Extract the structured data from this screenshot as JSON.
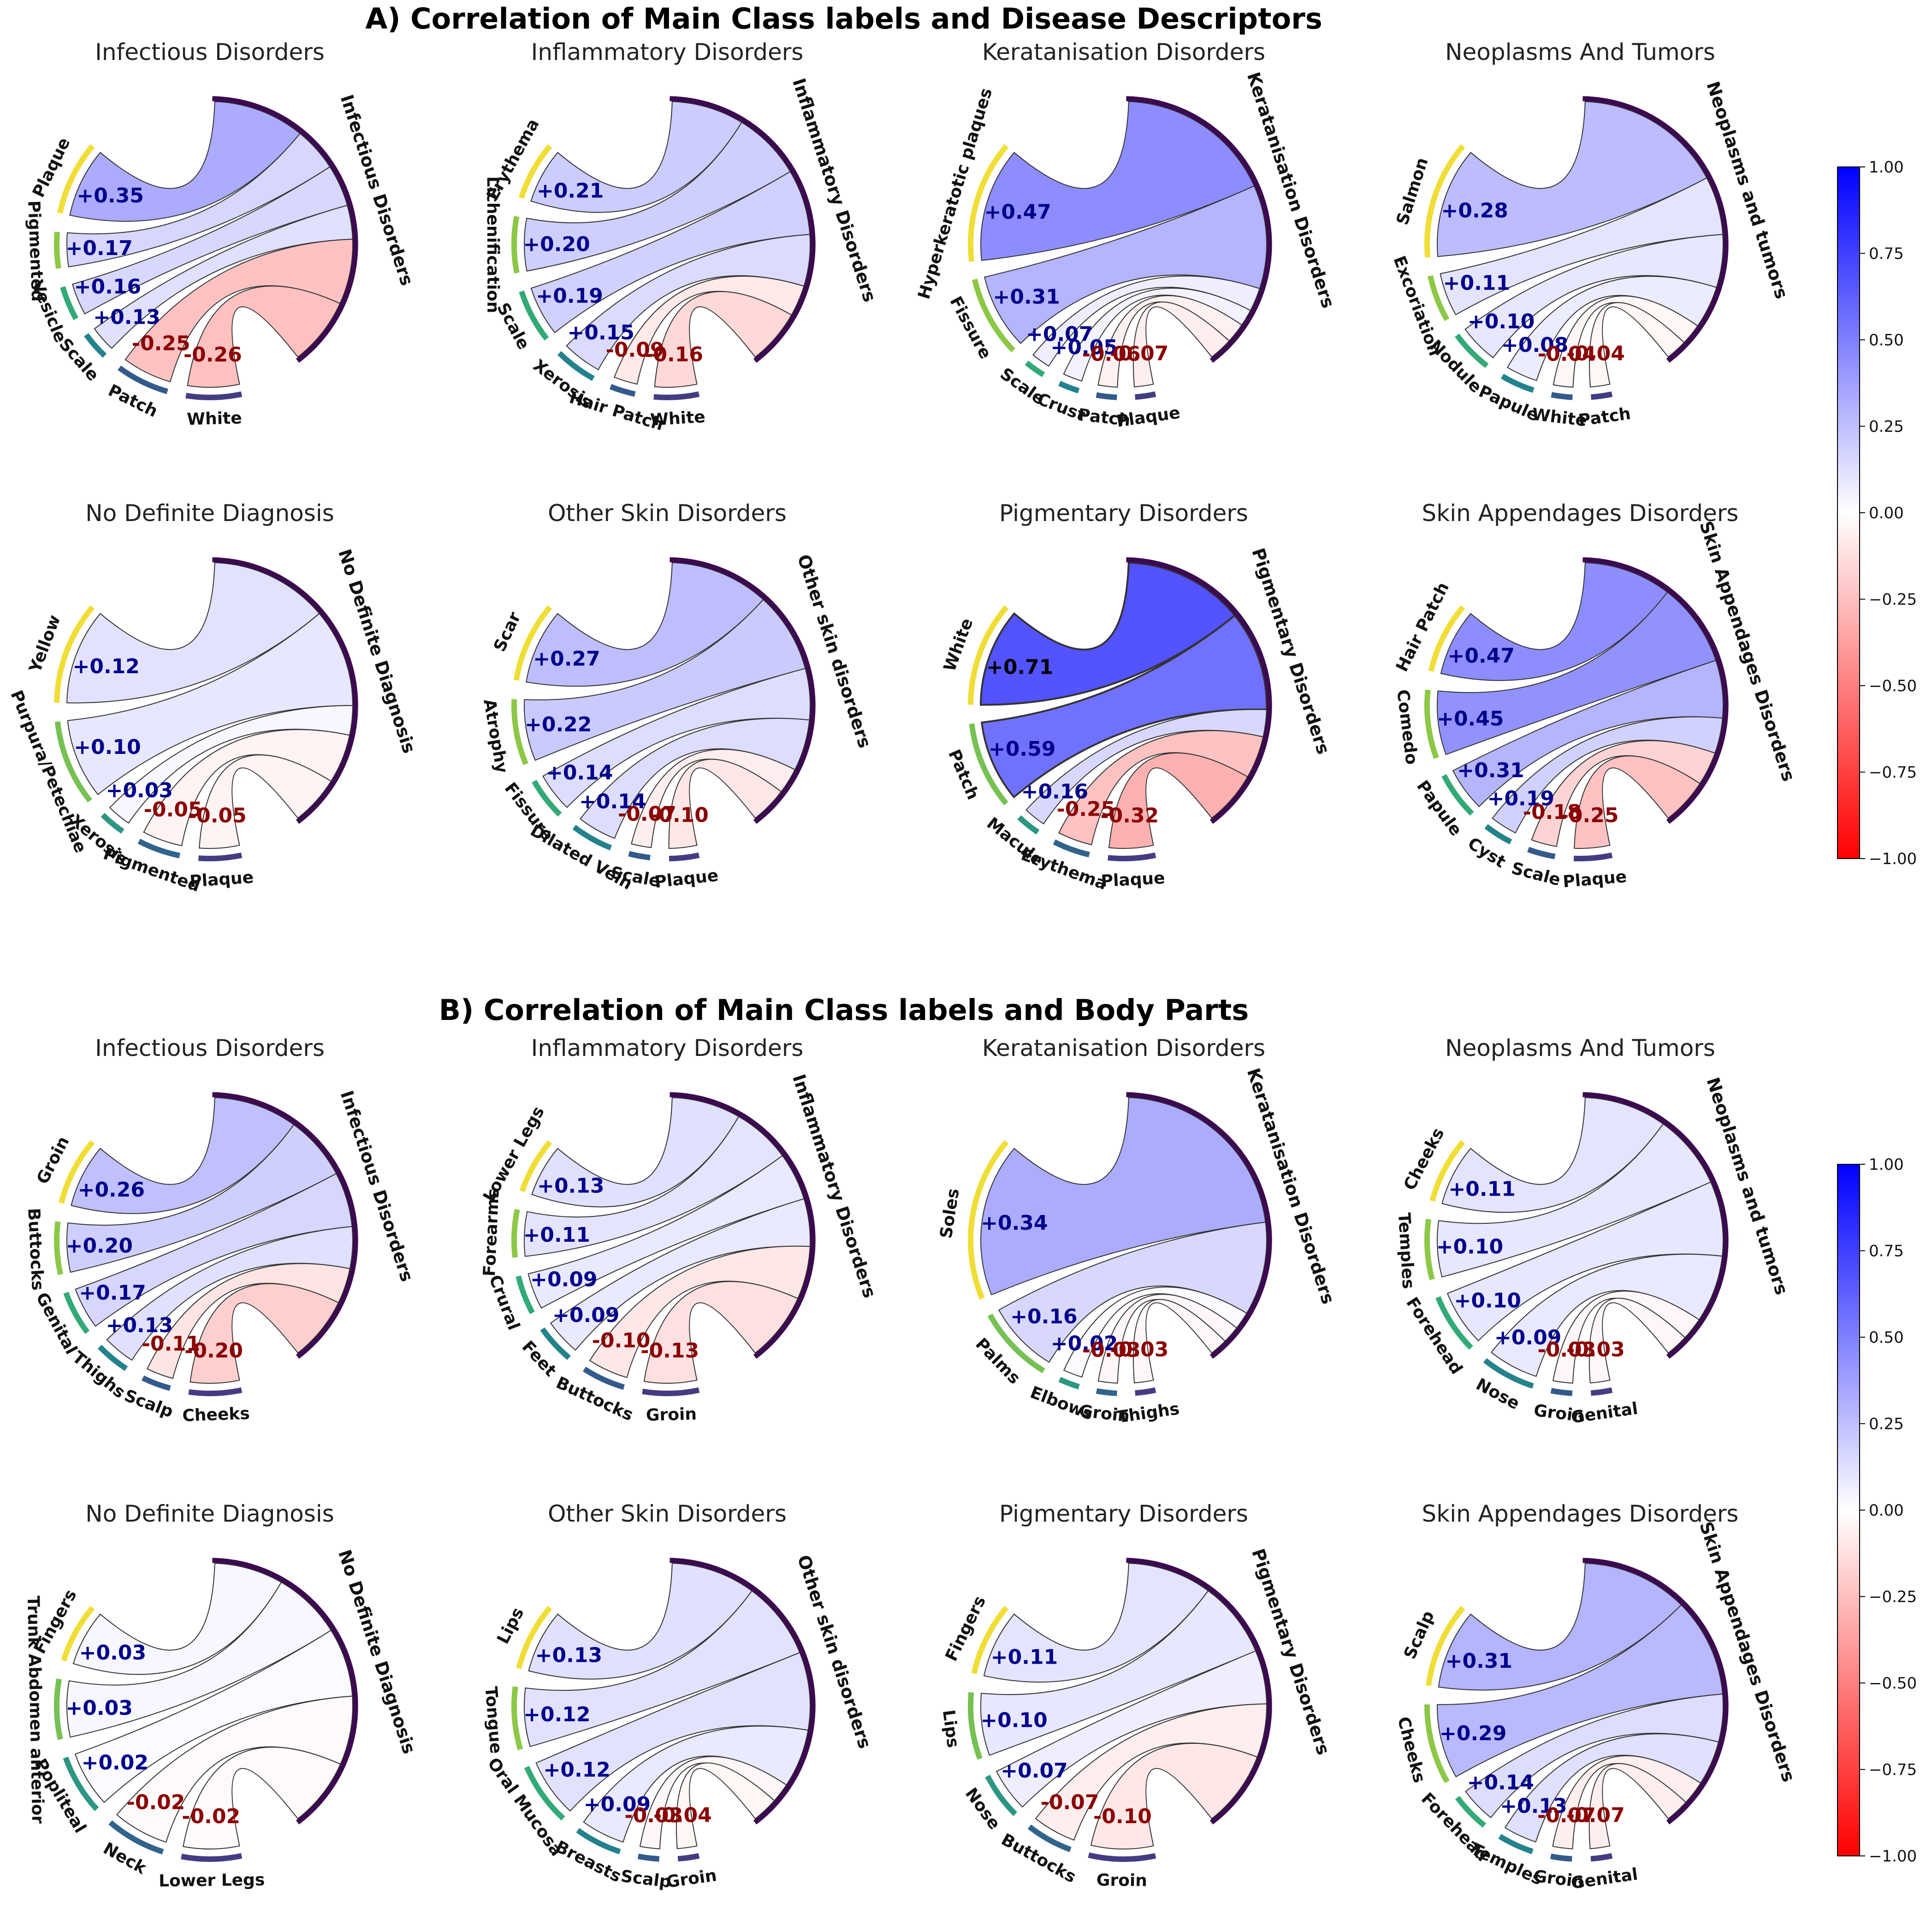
{
  "section_a_title": "A) Correlation of Main Class labels and Disease Descriptors",
  "section_b_title": "B) Correlation of Main Class labels and Body Parts",
  "colorbar": {
    "ticks": [
      "1.00",
      "0.75",
      "0.50",
      "0.25",
      "0.00",
      "−0.25",
      "−0.50",
      "−0.75",
      "−1.00"
    ]
  },
  "colors": {
    "positive": "#0000ff",
    "negative": "#ff0000",
    "main_arc": "#3b0a4f",
    "pos_label": "#00008b",
    "neg_label": "#8b0000"
  },
  "chart_data": [
    {
      "section": "A",
      "type": "chord",
      "title": "Infectious Disorders",
      "main": "Infectious Disorders",
      "items": [
        {
          "label": "Plaque",
          "value": 0.35
        },
        {
          "label": "Pigmented",
          "value": 0.17
        },
        {
          "label": "Vesicle",
          "value": 0.16
        },
        {
          "label": "Scale",
          "value": 0.13
        },
        {
          "label": "Patch",
          "value": -0.25
        },
        {
          "label": "White",
          "value": -0.26
        }
      ]
    },
    {
      "section": "A",
      "type": "chord",
      "title": "Inflammatory Disorders",
      "main": "Inflammatory Disorders",
      "items": [
        {
          "label": "Erythema",
          "value": 0.21
        },
        {
          "label": "Lichenification",
          "value": 0.2
        },
        {
          "label": "Scale",
          "value": 0.19
        },
        {
          "label": "Xerosis",
          "value": 0.15
        },
        {
          "label": "Hair Patch",
          "value": -0.09
        },
        {
          "label": "White",
          "value": -0.16
        }
      ]
    },
    {
      "section": "A",
      "type": "chord",
      "title": "Keratanisation Disorders",
      "main": "Keratanisation Disorders",
      "items": [
        {
          "label": "Hyperkeratotic plaques",
          "value": 0.47
        },
        {
          "label": "Fissure",
          "value": 0.31
        },
        {
          "label": "Scale",
          "value": 0.07
        },
        {
          "label": "Crust",
          "value": 0.05
        },
        {
          "label": "Patch",
          "value": -0.06
        },
        {
          "label": "Plaque",
          "value": -0.07
        }
      ]
    },
    {
      "section": "A",
      "type": "chord",
      "title": "Neoplasms And Tumors",
      "main": "Neoplasms and tumors",
      "items": [
        {
          "label": "Salmon",
          "value": 0.28
        },
        {
          "label": "Excoriation",
          "value": 0.11
        },
        {
          "label": "Nodule",
          "value": 0.1
        },
        {
          "label": "Papule",
          "value": 0.08
        },
        {
          "label": "White",
          "value": -0.04
        },
        {
          "label": "Patch",
          "value": -0.04
        }
      ]
    },
    {
      "section": "A",
      "type": "chord",
      "title": "No Definite Diagnosis",
      "main": "No Definite Diagnosis",
      "items": [
        {
          "label": "Yellow",
          "value": 0.12
        },
        {
          "label": "Purpura/Petechiae",
          "value": 0.1
        },
        {
          "label": "Xerosis",
          "value": 0.03
        },
        {
          "label": "Pigmented",
          "value": -0.05
        },
        {
          "label": "Plaque",
          "value": -0.05
        }
      ]
    },
    {
      "section": "A",
      "type": "chord",
      "title": "Other Skin Disorders",
      "main": "Other skin disorders",
      "items": [
        {
          "label": "Scar",
          "value": 0.27
        },
        {
          "label": "Atrophy",
          "value": 0.22
        },
        {
          "label": "Fissure",
          "value": 0.14
        },
        {
          "label": "Dilated Vein",
          "value": 0.14
        },
        {
          "label": "Scale",
          "value": -0.07
        },
        {
          "label": "Plaque",
          "value": -0.1
        }
      ]
    },
    {
      "section": "A",
      "type": "chord",
      "title": "Pigmentary Disorders",
      "main": "Pigmentary Disorders",
      "items": [
        {
          "label": "White",
          "value": 0.71
        },
        {
          "label": "Patch",
          "value": 0.59
        },
        {
          "label": "Macule",
          "value": 0.16
        },
        {
          "label": "Erythema",
          "value": -0.25
        },
        {
          "label": "Plaque",
          "value": -0.32
        }
      ]
    },
    {
      "section": "A",
      "type": "chord",
      "title": "Skin Appendages Disorders",
      "main": "Skin Appendages Disorders",
      "items": [
        {
          "label": "Hair Patch",
          "value": 0.47
        },
        {
          "label": "Comedo",
          "value": 0.45
        },
        {
          "label": "Papule",
          "value": 0.31
        },
        {
          "label": "Cyst",
          "value": 0.19
        },
        {
          "label": "Scale",
          "value": -0.18
        },
        {
          "label": "Plaque",
          "value": -0.25
        }
      ]
    },
    {
      "section": "B",
      "type": "chord",
      "title": "Infectious Disorders",
      "main": "Infectious Disorders",
      "items": [
        {
          "label": "Groin",
          "value": 0.26
        },
        {
          "label": "Buttocks",
          "value": 0.2
        },
        {
          "label": "Genital",
          "value": 0.17
        },
        {
          "label": "Thighs",
          "value": 0.13
        },
        {
          "label": "Scalp",
          "value": -0.11
        },
        {
          "label": "Cheeks",
          "value": -0.2
        }
      ]
    },
    {
      "section": "B",
      "type": "chord",
      "title": "Inflammatory Disorders",
      "main": "Inflammatory Disorders",
      "items": [
        {
          "label": "Lower Legs",
          "value": 0.13
        },
        {
          "label": "Forearms",
          "value": 0.11
        },
        {
          "label": "Crural",
          "value": 0.09
        },
        {
          "label": "Feet",
          "value": 0.09
        },
        {
          "label": "Buttocks",
          "value": -0.1
        },
        {
          "label": "Groin",
          "value": -0.13
        }
      ]
    },
    {
      "section": "B",
      "type": "chord",
      "title": "Keratanisation Disorders",
      "main": "Keratanisation Disorders",
      "items": [
        {
          "label": "Soles",
          "value": 0.34
        },
        {
          "label": "Palms",
          "value": 0.16
        },
        {
          "label": "Elbows",
          "value": 0.02
        },
        {
          "label": "Groin",
          "value": -0.03
        },
        {
          "label": "Thighs",
          "value": -0.03
        }
      ]
    },
    {
      "section": "B",
      "type": "chord",
      "title": "Neoplasms And Tumors",
      "main": "Neoplasms and tumors",
      "items": [
        {
          "label": "Cheeks",
          "value": 0.11
        },
        {
          "label": "Temples",
          "value": 0.1
        },
        {
          "label": "Forehead",
          "value": 0.1
        },
        {
          "label": "Nose",
          "value": 0.09
        },
        {
          "label": "Groin",
          "value": -0.03
        },
        {
          "label": "Genital",
          "value": -0.03
        }
      ]
    },
    {
      "section": "B",
      "type": "chord",
      "title": "No Definite Diagnosis",
      "main": "No Definite Diagnosis",
      "items": [
        {
          "label": "Fingers",
          "value": 0.03
        },
        {
          "label": "Trunk Abdomen anterior",
          "value": 0.03
        },
        {
          "label": "Popliteal",
          "value": 0.02
        },
        {
          "label": "Neck",
          "value": -0.02
        },
        {
          "label": "Lower Legs",
          "value": -0.02
        }
      ]
    },
    {
      "section": "B",
      "type": "chord",
      "title": "Other Skin Disorders",
      "main": "Other skin disorders",
      "items": [
        {
          "label": "Lips",
          "value": 0.13
        },
        {
          "label": "Tongue",
          "value": 0.12
        },
        {
          "label": "Oral Mucosa",
          "value": 0.12
        },
        {
          "label": "Breasts",
          "value": 0.09
        },
        {
          "label": "Scalp",
          "value": -0.03
        },
        {
          "label": "Groin",
          "value": -0.04
        }
      ]
    },
    {
      "section": "B",
      "type": "chord",
      "title": "Pigmentary Disorders",
      "main": "Pigmentary Disorders",
      "items": [
        {
          "label": "Fingers",
          "value": 0.11
        },
        {
          "label": "Lips",
          "value": 0.1
        },
        {
          "label": "Nose",
          "value": 0.07
        },
        {
          "label": "Buttocks",
          "value": -0.07
        },
        {
          "label": "Groin",
          "value": -0.1
        }
      ]
    },
    {
      "section": "B",
      "type": "chord",
      "title": "Skin Appendages Disorders",
      "main": "Skin Appendages Disorders",
      "items": [
        {
          "label": "Scalp",
          "value": 0.31
        },
        {
          "label": "Cheeks",
          "value": 0.29
        },
        {
          "label": "Forehead",
          "value": 0.14
        },
        {
          "label": "Temples",
          "value": 0.13
        },
        {
          "label": "Groin",
          "value": -0.07
        },
        {
          "label": "Genital",
          "value": -0.07
        }
      ]
    }
  ]
}
